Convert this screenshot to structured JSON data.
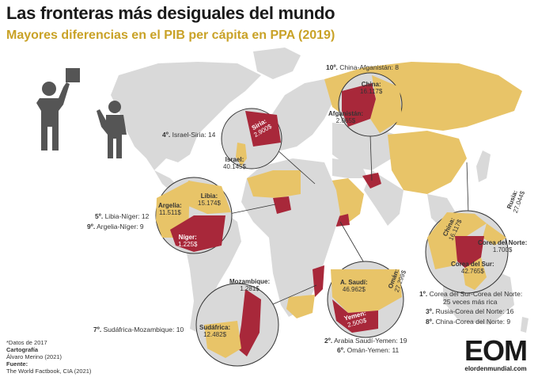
{
  "title": "Las fronteras más desiguales del mundo",
  "subtitle": "Mayores diferencias en el PIB per cápita en PPA (2019)",
  "colors": {
    "land": "#d9d9d9",
    "high": "#e8c468",
    "low": "#a8283a",
    "accent": "#c9a227",
    "line": "#333333"
  },
  "rankings": [
    {
      "rank": "1º.",
      "pair": "Corea del Sur-Corea del Norte:",
      "value": "25 veces más rica"
    },
    {
      "rank": "2º.",
      "pair": "Arabia Saudí-Yemen:",
      "value": "19"
    },
    {
      "rank": "3º.",
      "pair": "Rusia-Corea del Norte:",
      "value": "16"
    },
    {
      "rank": "4º.",
      "pair": "Israel-Siria:",
      "value": "14"
    },
    {
      "rank": "5º.",
      "pair": "Libia-Níger:",
      "value": "12"
    },
    {
      "rank": "6º.",
      "pair": "Omán-Yemen:",
      "value": "11"
    },
    {
      "rank": "7º.",
      "pair": "Sudáfrica-Mozambique:",
      "value": "10"
    },
    {
      "rank": "8º.",
      "pair": "China-Corea del Norte:",
      "value": "9"
    },
    {
      "rank": "9º.",
      "pair": "Argelia-Níger:",
      "value": "9"
    },
    {
      "rank": "10º.",
      "pair": "China-Afganistán:",
      "value": "8"
    }
  ],
  "countries": {
    "china_top": {
      "name": "China:",
      "gdp": "16.117$"
    },
    "afganistan": {
      "name": "Afganistán:",
      "gdp": "2.065$"
    },
    "siria": {
      "name": "Siria:",
      "gdp": "2.900$"
    },
    "israel": {
      "name": "Israel:",
      "gdp": "40.145$"
    },
    "libia": {
      "name": "Libia:",
      "gdp": "15.174$"
    },
    "argelia": {
      "name": "Argelia:",
      "gdp": "11.511$"
    },
    "niger": {
      "name": "Níger:",
      "gdp": "1.225$"
    },
    "rusia": {
      "name": "Rusia:",
      "gdp": "27.044$"
    },
    "china_korea": {
      "name": "China:",
      "gdp": "16.117$"
    },
    "corea_norte": {
      "name": "Corea del Norte:",
      "gdp": "1.700$"
    },
    "corea_sur": {
      "name": "Corea del Sur:",
      "gdp": "42.765$"
    },
    "oman": {
      "name": "Omán:",
      "gdp": "27.299$"
    },
    "saudi": {
      "name": "A. Saudí:",
      "gdp": "46.962$"
    },
    "yemen": {
      "name": "Yemen:",
      "gdp": "2.500$"
    },
    "mozambique": {
      "name": "Mozambique:",
      "gdp": "1.281$"
    },
    "sudafrica": {
      "name": "Sudáfrica:",
      "gdp": "12.482$"
    }
  },
  "footer": {
    "note": "*Datos de 2017",
    "carto_label": "Cartografía",
    "carto_author": "Álvaro Merino (2021)",
    "source_label": "Fuente:",
    "source": "The World Factbook, CIA (2021)"
  },
  "logo": {
    "text": "EOM",
    "url": "elordenmundial.com"
  }
}
